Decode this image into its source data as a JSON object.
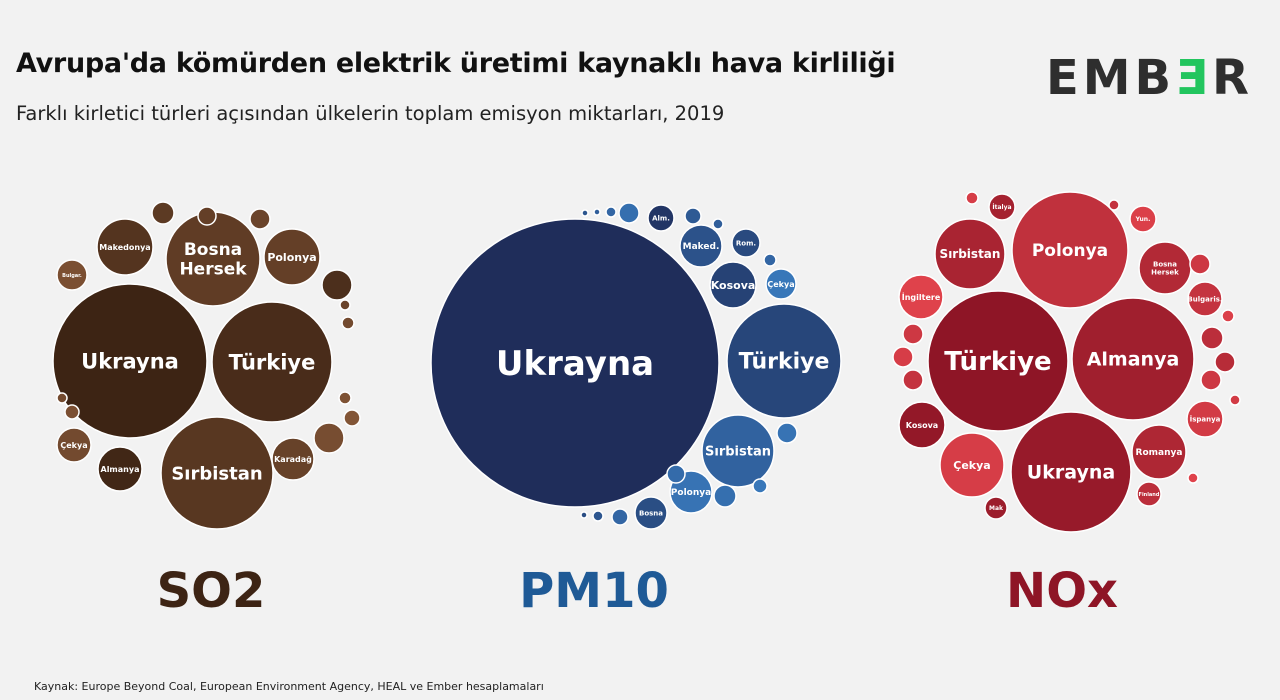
{
  "header": {
    "title": "Avrupa'da kömürden elektrik üretimi kaynaklı hava kirliliği",
    "subtitle": "Farklı kirletici türleri açısından ülkelerin toplam emisyon miktarları, 2019",
    "logo_left": "EMB",
    "logo_mid": "Ǝ",
    "logo_right": "R"
  },
  "footer": {
    "source": "Kaynak: Europe Beyond Coal, European Environment Agency, HEAL ve Ember hesaplamaları"
  },
  "colors": {
    "so2": "#4a2c17",
    "pm10": "#1f3a6b",
    "nox": "#9e1a2a",
    "logo_accent": "#22c55e"
  },
  "chart_data": [
    {
      "type": "packed-bubble",
      "title": "SO2",
      "color_dark": "#3d2414",
      "color_light": "#8a5a3a",
      "labeled_bubbles": [
        {
          "label": "Ukrayna",
          "size": 100
        },
        {
          "label": "Türkiye",
          "size": 90
        },
        {
          "label": "Sırbistan",
          "size": 56
        },
        {
          "label": "Bosna Hersek",
          "size": 36
        },
        {
          "label": "Polonya",
          "size": 20
        },
        {
          "label": "Makedonya",
          "size": 18
        },
        {
          "label": "Karadağ",
          "size": 9
        },
        {
          "label": "Almanya",
          "size": 9
        },
        {
          "label": "Çekya",
          "size": 7
        },
        {
          "label": "Bulgar.",
          "size": 5
        }
      ]
    },
    {
      "type": "packed-bubble",
      "title": "PM10",
      "color_dark": "#1f2d5a",
      "color_light": "#3b7fc4",
      "labeled_bubbles": [
        {
          "label": "Ukrayna",
          "size": 100
        },
        {
          "label": "Türkiye",
          "size": 17
        },
        {
          "label": "Sırbistan",
          "size": 8
        },
        {
          "label": "Kosova",
          "size": 3.5
        },
        {
          "label": "Maked.",
          "size": 2.5
        },
        {
          "label": "Polonya",
          "size": 2.4
        },
        {
          "label": "Çekya",
          "size": 1.8
        },
        {
          "label": "Bosna",
          "size": 1.6
        },
        {
          "label": "Rom.",
          "size": 1.4
        },
        {
          "label": "Alm.",
          "size": 1.3
        }
      ]
    },
    {
      "type": "packed-bubble",
      "title": "NOx",
      "color_dark": "#8e1526",
      "color_light": "#e8474f",
      "labeled_bubbles": [
        {
          "label": "Türkiye",
          "size": 100
        },
        {
          "label": "Almanya",
          "size": 76
        },
        {
          "label": "Ukrayna",
          "size": 76
        },
        {
          "label": "Polonya",
          "size": 72
        },
        {
          "label": "Sırbistan",
          "size": 26
        },
        {
          "label": "Çekya",
          "size": 22
        },
        {
          "label": "Romanya",
          "size": 18
        },
        {
          "label": "İngiltere",
          "size": 12
        },
        {
          "label": "Kosova",
          "size": 12
        },
        {
          "label": "Bosna Hersek",
          "size": 12
        },
        {
          "label": "İspanya",
          "size": 8
        },
        {
          "label": "Bulgaris.",
          "size": 8
        },
        {
          "label": "İtalya",
          "size": 4
        },
        {
          "label": "Yun.",
          "size": 4
        },
        {
          "label": "Mak",
          "size": 3
        },
        {
          "label": "Finland",
          "size": 3
        }
      ]
    }
  ]
}
